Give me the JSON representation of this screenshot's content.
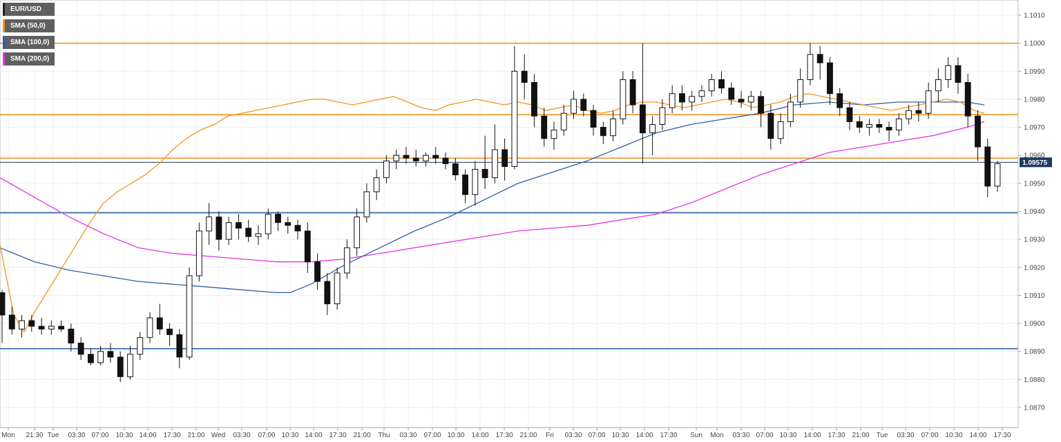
{
  "legend": [
    {
      "label": "EUR/USD",
      "color": "#222222"
    },
    {
      "label": "SMA (50,0)",
      "color": "#f5921e"
    },
    {
      "label": "SMA (100,0)",
      "color": "#2c5fa8"
    },
    {
      "label": "SMA (200,0)",
      "color": "#e433e4"
    }
  ],
  "chart_data": {
    "type": "candlestick",
    "symbol": "EUR/USD",
    "ylim": [
      1.0865,
      1.1015
    ],
    "y_ticks": [
      "1.1010",
      "1.1000",
      "1.0990",
      "1.0980",
      "1.0970",
      "1.0960",
      "1.0950",
      "1.0940",
      "1.0930",
      "1.0920",
      "1.0910",
      "1.0900",
      "1.0890",
      "1.0880",
      "1.0870"
    ],
    "x_ticks": [
      "Mon",
      "21:30",
      "Tue",
      "03:30",
      "07:00",
      "10:30",
      "14:00",
      "17:30",
      "21:00",
      "Wed",
      "03:30",
      "07:00",
      "10:30",
      "14:00",
      "17:30",
      "21:00",
      "Thu",
      "03:30",
      "07:00",
      "10:30",
      "14:00",
      "17:30",
      "21:00",
      "Fri",
      "03:30",
      "07:00",
      "10:30",
      "14:00",
      "17:30",
      "Sun",
      "Mon",
      "03:30",
      "07:00",
      "10:30",
      "14:00",
      "17:30",
      "21:00",
      "Tue",
      "03:30",
      "07:00",
      "10:30",
      "14:00",
      "17:30"
    ],
    "current_price": {
      "label": "1.09575",
      "value": 1.09575,
      "color": "#1d3a5c"
    },
    "horizontal_levels": [
      {
        "value": 1.1,
        "color": "#f5921e"
      },
      {
        "value": 1.09745,
        "color": "#f5921e"
      },
      {
        "value": 1.0959,
        "color": "#f5921e"
      },
      {
        "value": 1.09395,
        "color": "#2c5fa8"
      },
      {
        "value": 1.0891,
        "color": "#2c5fa8"
      }
    ],
    "candles": [
      [
        1.0911,
        1.0912,
        1.0893,
        1.0903
      ],
      [
        1.0903,
        1.0906,
        1.0896,
        1.0898
      ],
      [
        1.0898,
        1.0903,
        1.0895,
        1.0901
      ],
      [
        1.0901,
        1.0903,
        1.0897,
        1.0899
      ],
      [
        1.0899,
        1.0902,
        1.0896,
        1.0898
      ],
      [
        1.0898,
        1.0901,
        1.0896,
        1.0899
      ],
      [
        1.0899,
        1.0901,
        1.0897,
        1.0898
      ],
      [
        1.0898,
        1.09,
        1.089,
        1.0893
      ],
      [
        1.0893,
        1.0895,
        1.0887,
        1.0889
      ],
      [
        1.0889,
        1.0891,
        1.0885,
        1.0886
      ],
      [
        1.0886,
        1.0892,
        1.0885,
        1.089
      ],
      [
        1.089,
        1.0893,
        1.0886,
        1.0888
      ],
      [
        1.0888,
        1.089,
        1.0879,
        1.0881
      ],
      [
        1.0881,
        1.0892,
        1.088,
        1.0889
      ],
      [
        1.0889,
        1.0897,
        1.0887,
        1.0895
      ],
      [
        1.0895,
        1.0904,
        1.0893,
        1.0902
      ],
      [
        1.0902,
        1.0907,
        1.0896,
        1.0898
      ],
      [
        1.0898,
        1.09,
        1.0892,
        1.0896
      ],
      [
        1.0896,
        1.0898,
        1.0884,
        1.0888
      ],
      [
        1.0888,
        1.092,
        1.0887,
        1.0917
      ],
      [
        1.0917,
        1.0936,
        1.0915,
        1.0933
      ],
      [
        1.0933,
        1.0943,
        1.0928,
        1.0938
      ],
      [
        1.0938,
        1.094,
        1.0926,
        1.093
      ],
      [
        1.093,
        1.0938,
        1.0928,
        1.0936
      ],
      [
        1.0936,
        1.0939,
        1.093,
        1.0934
      ],
      [
        1.0934,
        1.0937,
        1.0929,
        1.0931
      ],
      [
        1.0931,
        1.0935,
        1.0928,
        1.0932
      ],
      [
        1.0932,
        1.0941,
        1.093,
        1.0939
      ],
      [
        1.0939,
        1.094,
        1.0933,
        1.0936
      ],
      [
        1.0936,
        1.0938,
        1.0932,
        1.0935
      ],
      [
        1.0935,
        1.0937,
        1.093,
        1.0933
      ],
      [
        1.0933,
        1.0936,
        1.0918,
        1.0922
      ],
      [
        1.0922,
        1.0925,
        1.0912,
        1.0915
      ],
      [
        1.0915,
        1.0918,
        1.0903,
        1.0907
      ],
      [
        1.0907,
        1.092,
        1.0905,
        1.0918
      ],
      [
        1.0918,
        1.093,
        1.0916,
        1.0927
      ],
      [
        1.0927,
        1.0941,
        1.0924,
        1.0938
      ],
      [
        1.0938,
        1.095,
        1.0936,
        1.0947
      ],
      [
        1.0947,
        1.0955,
        1.0944,
        1.0952
      ],
      [
        1.0952,
        1.096,
        1.095,
        1.0958
      ],
      [
        1.0958,
        1.0962,
        1.0955,
        1.096
      ],
      [
        1.096,
        1.0963,
        1.0957,
        1.0959
      ],
      [
        1.0959,
        1.0962,
        1.0956,
        1.0958
      ],
      [
        1.0958,
        1.0961,
        1.0956,
        1.096
      ],
      [
        1.096,
        1.0963,
        1.0957,
        1.0959
      ],
      [
        1.0959,
        1.0961,
        1.0955,
        1.0957
      ],
      [
        1.0957,
        1.0959,
        1.0951,
        1.0953
      ],
      [
        1.0953,
        1.0955,
        1.0943,
        1.0946
      ],
      [
        1.0946,
        1.0958,
        1.0942,
        1.0955
      ],
      [
        1.0955,
        1.0967,
        1.0948,
        1.0952
      ],
      [
        1.0952,
        1.0971,
        1.095,
        1.0962
      ],
      [
        1.0962,
        1.0966,
        1.0951,
        1.0956
      ],
      [
        1.0956,
        1.0999,
        1.0955,
        1.099
      ],
      [
        1.099,
        1.0996,
        1.098,
        1.0986
      ],
      [
        1.0986,
        1.0989,
        1.097,
        1.0974
      ],
      [
        1.0974,
        1.0977,
        1.0963,
        1.0966
      ],
      [
        1.0966,
        1.0972,
        1.0962,
        1.0969
      ],
      [
        1.0969,
        1.0978,
        1.0967,
        1.0975
      ],
      [
        1.0975,
        1.0983,
        1.0973,
        1.098
      ],
      [
        1.098,
        1.0982,
        1.0974,
        1.0976
      ],
      [
        1.0976,
        1.0978,
        1.0967,
        1.097
      ],
      [
        1.097,
        1.0972,
        1.0964,
        1.0967
      ],
      [
        1.0967,
        1.0976,
        1.0965,
        1.0973
      ],
      [
        1.0973,
        1.099,
        1.0971,
        1.0987
      ],
      [
        1.0987,
        1.099,
        1.0975,
        1.0978
      ],
      [
        1.0978,
        1.1,
        1.0957,
        1.0968
      ],
      [
        1.0968,
        1.0974,
        1.096,
        1.0971
      ],
      [
        1.0971,
        1.098,
        1.0969,
        1.0977
      ],
      [
        1.0977,
        1.0985,
        1.0975,
        1.0982
      ],
      [
        1.0982,
        1.0985,
        1.0976,
        1.0979
      ],
      [
        1.0979,
        1.0983,
        1.0976,
        1.0981
      ],
      [
        1.0981,
        1.0985,
        1.0979,
        1.0983
      ],
      [
        1.0983,
        1.0989,
        1.0981,
        1.0987
      ],
      [
        1.0987,
        1.099,
        1.0982,
        1.0984
      ],
      [
        1.0984,
        1.0986,
        1.0978,
        1.098
      ],
      [
        1.098,
        1.0983,
        1.0977,
        1.0979
      ],
      [
        1.0979,
        1.0983,
        1.0976,
        1.0981
      ],
      [
        1.0981,
        1.0983,
        1.097,
        1.0975
      ],
      [
        1.0975,
        1.0978,
        1.0962,
        1.0966
      ],
      [
        1.0966,
        1.0975,
        1.0964,
        1.0972
      ],
      [
        1.0972,
        1.0982,
        1.097,
        1.0979
      ],
      [
        1.0979,
        1.0991,
        1.0977,
        1.0987
      ],
      [
        1.0987,
        1.1,
        1.0985,
        1.0996
      ],
      [
        1.0996,
        1.0999,
        1.0987,
        1.0993
      ],
      [
        1.0993,
        1.0995,
        1.0978,
        1.0982
      ],
      [
        1.0982,
        1.0984,
        1.0974,
        1.0977
      ],
      [
        1.0977,
        1.0979,
        1.0969,
        1.0972
      ],
      [
        1.0972,
        1.0974,
        1.0968,
        1.097
      ],
      [
        1.097,
        1.0973,
        1.0967,
        1.0971
      ],
      [
        1.0971,
        1.0973,
        1.0968,
        1.097
      ],
      [
        1.097,
        1.0972,
        1.0965,
        1.0969
      ],
      [
        1.0969,
        1.0975,
        1.0967,
        1.0973
      ],
      [
        1.0973,
        1.0978,
        1.0971,
        1.0976
      ],
      [
        1.0976,
        1.0979,
        1.0972,
        1.0975
      ],
      [
        1.0975,
        1.0986,
        1.0973,
        1.0983
      ],
      [
        1.0983,
        1.0991,
        1.0979,
        1.0987
      ],
      [
        1.0987,
        1.0995,
        1.0984,
        1.0992
      ],
      [
        1.0992,
        1.0995,
        1.0982,
        1.0986
      ],
      [
        1.0986,
        1.0989,
        1.097,
        1.0974
      ],
      [
        1.0974,
        1.0976,
        1.0958,
        1.0963
      ],
      [
        1.0963,
        1.0966,
        1.0945,
        1.0949
      ],
      [
        1.0949,
        1.0958,
        1.0947,
        1.0957
      ]
    ],
    "sma50": [
      [
        0,
        1.0928
      ],
      [
        8,
        1.0918
      ],
      [
        20,
        1.0903
      ],
      [
        35,
        1.0897
      ],
      [
        50,
        1.0904
      ],
      [
        70,
        1.0912
      ],
      [
        90,
        1.092
      ],
      [
        110,
        1.0928
      ],
      [
        130,
        1.0936
      ],
      [
        150,
        1.0943
      ],
      [
        170,
        1.0947
      ],
      [
        190,
        1.095
      ],
      [
        210,
        1.0953
      ],
      [
        230,
        1.0957
      ],
      [
        250,
        1.0962
      ],
      [
        270,
        1.0966
      ],
      [
        290,
        1.0969
      ],
      [
        310,
        1.0971
      ],
      [
        330,
        1.0974
      ],
      [
        350,
        1.0975
      ],
      [
        370,
        1.0976
      ],
      [
        390,
        1.0977
      ],
      [
        410,
        1.0978
      ],
      [
        430,
        1.0979
      ],
      [
        450,
        1.098
      ],
      [
        470,
        1.098
      ],
      [
        490,
        1.0979
      ],
      [
        510,
        1.0978
      ],
      [
        530,
        1.0979
      ],
      [
        550,
        1.098
      ],
      [
        570,
        1.0981
      ],
      [
        590,
        1.0979
      ],
      [
        610,
        1.0977
      ],
      [
        630,
        1.0976
      ],
      [
        650,
        1.0978
      ],
      [
        670,
        1.0979
      ],
      [
        690,
        1.098
      ],
      [
        710,
        1.0979
      ],
      [
        730,
        1.0978
      ],
      [
        750,
        1.0979
      ],
      [
        770,
        1.0978
      ],
      [
        790,
        1.0976
      ],
      [
        810,
        1.0977
      ],
      [
        830,
        1.0978
      ],
      [
        850,
        1.0976
      ],
      [
        870,
        1.0975
      ],
      [
        890,
        1.0976
      ],
      [
        910,
        1.0978
      ],
      [
        930,
        1.0979
      ],
      [
        950,
        1.0979
      ],
      [
        970,
        1.0978
      ],
      [
        990,
        1.0977
      ],
      [
        1010,
        1.0978
      ],
      [
        1030,
        1.0979
      ],
      [
        1050,
        1.098
      ],
      [
        1070,
        1.0979
      ],
      [
        1090,
        1.0977
      ],
      [
        1110,
        1.0978
      ],
      [
        1130,
        1.0979
      ],
      [
        1150,
        1.0981
      ],
      [
        1170,
        1.0982
      ],
      [
        1190,
        1.0981
      ],
      [
        1210,
        1.098
      ],
      [
        1230,
        1.0979
      ],
      [
        1250,
        1.0978
      ],
      [
        1270,
        1.0977
      ],
      [
        1290,
        1.0976
      ],
      [
        1310,
        1.0977
      ],
      [
        1330,
        1.0978
      ],
      [
        1350,
        1.0979
      ],
      [
        1370,
        1.098
      ],
      [
        1390,
        1.0979
      ],
      [
        1410,
        1.0976
      ],
      [
        1425,
        1.0975
      ]
    ],
    "sma100": [
      [
        0,
        1.0927
      ],
      [
        50,
        1.0922
      ],
      [
        100,
        1.0919
      ],
      [
        150,
        1.0917
      ],
      [
        200,
        1.0915
      ],
      [
        250,
        1.0914
      ],
      [
        300,
        1.0913
      ],
      [
        350,
        1.0912
      ],
      [
        400,
        1.0911
      ],
      [
        420,
        1.0911
      ],
      [
        450,
        1.0914
      ],
      [
        500,
        1.0921
      ],
      [
        550,
        1.0927
      ],
      [
        600,
        1.0933
      ],
      [
        650,
        1.0938
      ],
      [
        700,
        1.0944
      ],
      [
        750,
        1.095
      ],
      [
        800,
        1.0954
      ],
      [
        850,
        1.0958
      ],
      [
        900,
        1.0963
      ],
      [
        950,
        1.0968
      ],
      [
        1000,
        1.0971
      ],
      [
        1050,
        1.0973
      ],
      [
        1100,
        1.0975
      ],
      [
        1150,
        1.0978
      ],
      [
        1200,
        1.0979
      ],
      [
        1250,
        1.0978
      ],
      [
        1300,
        1.0979
      ],
      [
        1350,
        1.0979
      ],
      [
        1400,
        1.0979
      ],
      [
        1425,
        1.0978
      ]
    ],
    "sma200": [
      [
        0,
        1.0952
      ],
      [
        50,
        1.0945
      ],
      [
        100,
        1.0938
      ],
      [
        150,
        1.0932
      ],
      [
        200,
        1.0927
      ],
      [
        250,
        1.0925
      ],
      [
        300,
        1.0924
      ],
      [
        350,
        1.0923
      ],
      [
        400,
        1.0922
      ],
      [
        450,
        1.0922
      ],
      [
        500,
        1.0923
      ],
      [
        550,
        1.0925
      ],
      [
        600,
        1.0927
      ],
      [
        650,
        1.0929
      ],
      [
        700,
        1.0931
      ],
      [
        750,
        1.0933
      ],
      [
        800,
        1.0934
      ],
      [
        850,
        1.0935
      ],
      [
        900,
        1.0937
      ],
      [
        950,
        1.0939
      ],
      [
        1000,
        1.0943
      ],
      [
        1050,
        1.0948
      ],
      [
        1100,
        1.0953
      ],
      [
        1150,
        1.0957
      ],
      [
        1200,
        1.0961
      ],
      [
        1250,
        1.0963
      ],
      [
        1300,
        1.0965
      ],
      [
        1350,
        1.0967
      ],
      [
        1400,
        1.097
      ],
      [
        1425,
        1.0972
      ]
    ]
  }
}
